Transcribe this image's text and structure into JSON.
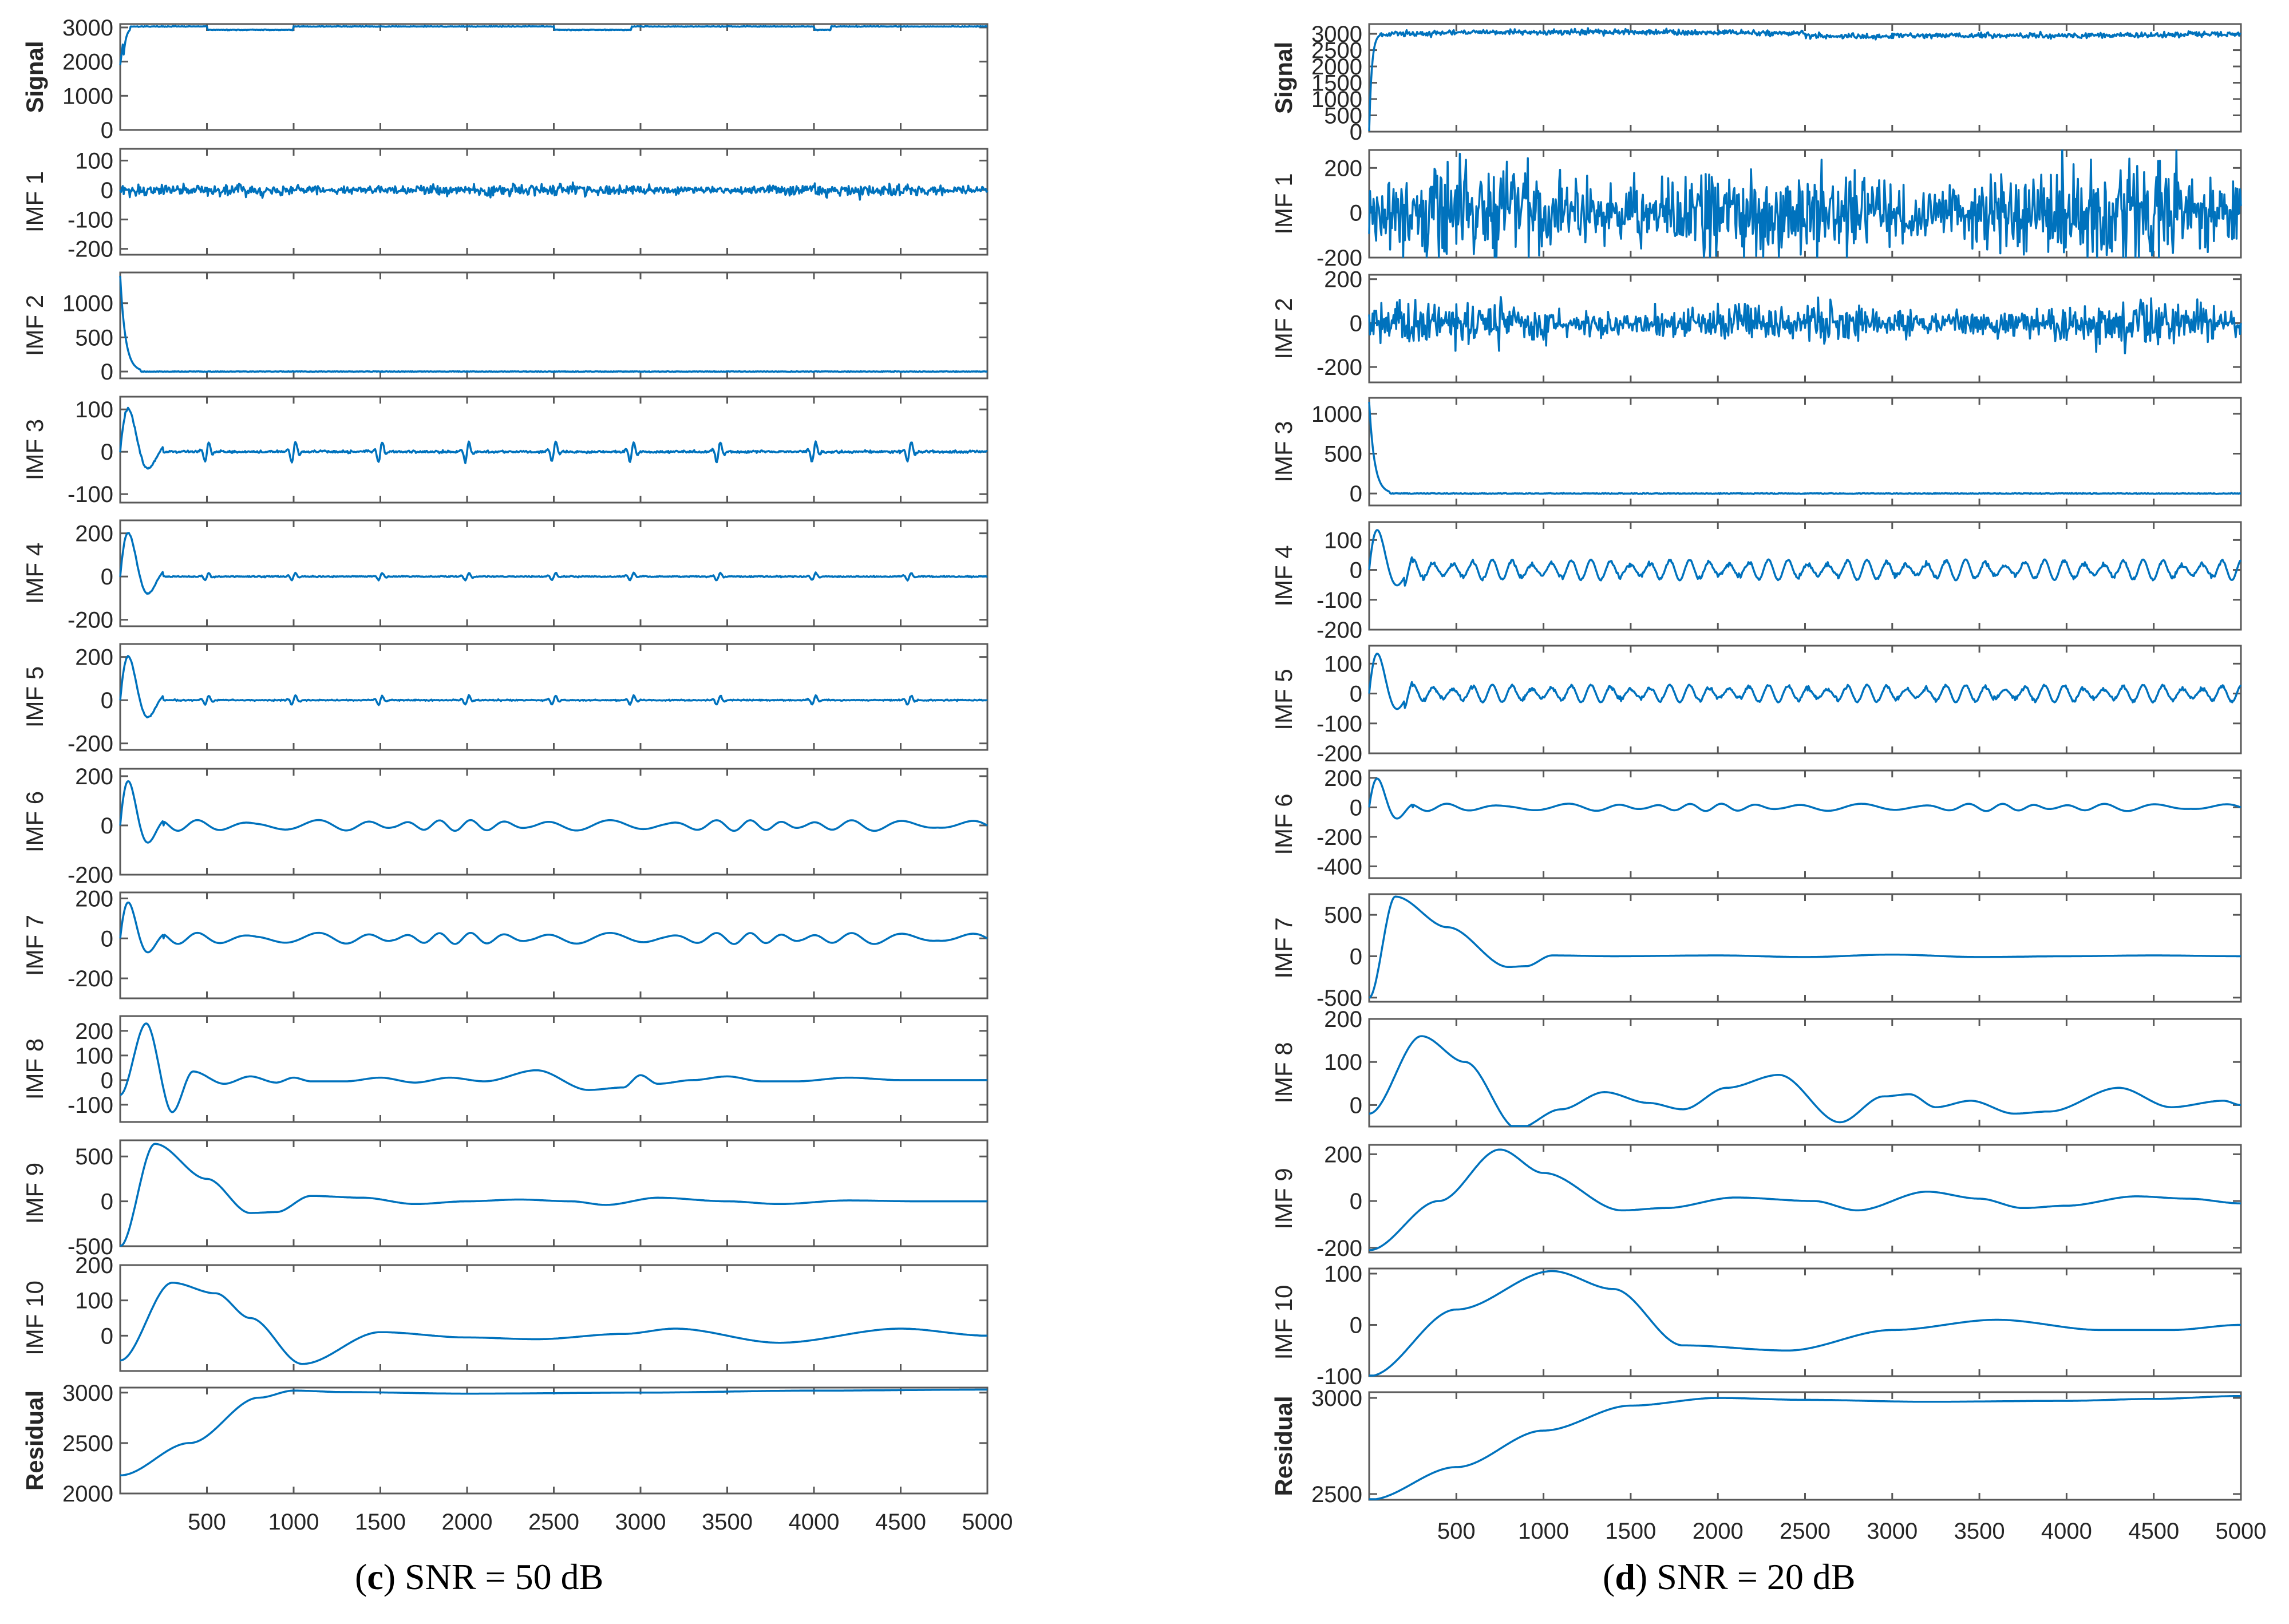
{
  "style": {
    "line_color": "#0072BD",
    "axis_color": "#595959",
    "text_color": "#262626"
  },
  "panels": [
    {
      "id": "c",
      "caption": {
        "open": "(",
        "letter": "c",
        "rest": ") SNR = 50 dB"
      },
      "x_ticks": [
        500,
        1000,
        1500,
        2000,
        2500,
        3000,
        3500,
        4000,
        4500,
        5000
      ],
      "chart_data": {
        "type": "line",
        "x_range": [
          0,
          5000
        ],
        "subplots": [
          {
            "ylabel": "Signal",
            "ylim": [
              0,
              3100
            ],
            "yticks": [
              0,
              1000,
              2000,
              3000
            ],
            "signal": "signal50"
          },
          {
            "ylabel": "IMF 1",
            "ylim": [
              -220,
              140
            ],
            "yticks": [
              -200,
              -100,
              0,
              100
            ],
            "signal": "noise",
            "amp": 12
          },
          {
            "ylabel": "IMF 2",
            "ylim": [
              -100,
              1450
            ],
            "yticks": [
              0,
              500,
              1000
            ],
            "signal": "spike",
            "peak": 1400
          },
          {
            "ylabel": "IMF 3",
            "ylim": [
              -120,
              130
            ],
            "yticks": [
              -100,
              0,
              100
            ],
            "signal": "bursts",
            "amp": 28
          },
          {
            "ylabel": "IMF 4",
            "ylim": [
              -230,
              260
            ],
            "yticks": [
              -200,
              0,
              200
            ],
            "signal": "bursts",
            "amp": 20
          },
          {
            "ylabel": "IMF 5",
            "ylim": [
              -230,
              260
            ],
            "yticks": [
              -200,
              0,
              200
            ],
            "signal": "bursts",
            "amp": 25
          },
          {
            "ylabel": "IMF 6",
            "ylim": [
              -200,
              230
            ],
            "yticks": [
              -200,
              0,
              200
            ],
            "signal": "waves",
            "amp": 22
          },
          {
            "ylabel": "IMF 7",
            "ylim": [
              -300,
              230
            ],
            "yticks": [
              -200,
              0,
              200
            ],
            "signal": "waves",
            "amp": 28
          },
          {
            "ylabel": "IMF 8",
            "ylim": [
              -170,
              260
            ],
            "yticks": [
              -100,
              0,
              100,
              200
            ],
            "signal": "imf8_c"
          },
          {
            "ylabel": "IMF 9",
            "ylim": [
              -500,
              680
            ],
            "yticks": [
              -500,
              0,
              500
            ],
            "signal": "imf9_c"
          },
          {
            "ylabel": "IMF 10",
            "ylim": [
              -100,
              200
            ],
            "yticks": [
              0,
              100,
              200
            ],
            "signal": "imf10_c"
          },
          {
            "ylabel": "Residual",
            "ylim": [
              2000,
              3050
            ],
            "yticks": [
              2000,
              2500,
              3000
            ],
            "signal": "res_c"
          }
        ]
      }
    },
    {
      "id": "d",
      "caption": {
        "open": "(",
        "letter": "d",
        "rest": ") SNR = 20 dB"
      },
      "x_ticks": [
        500,
        1000,
        1500,
        2000,
        2500,
        3000,
        3500,
        4000,
        4500,
        5000
      ],
      "chart_data": {
        "type": "line",
        "x_range": [
          0,
          5000
        ],
        "subplots": [
          {
            "ylabel": "Signal",
            "ylim": [
              0,
              3300
            ],
            "yticks": [
              0,
              500,
              1000,
              1500,
              2000,
              2500,
              3000
            ],
            "signal": "signal20"
          },
          {
            "ylabel": "IMF 1",
            "ylim": [
              -200,
              280
            ],
            "yticks": [
              -200,
              0,
              200
            ],
            "signal": "noise",
            "amp": 130
          },
          {
            "ylabel": "IMF 2",
            "ylim": [
              -270,
              220
            ],
            "yticks": [
              -200,
              0,
              200
            ],
            "signal": "noise",
            "amp": 55
          },
          {
            "ylabel": "IMF 3",
            "ylim": [
              -150,
              1200
            ],
            "yticks": [
              0,
              500,
              1000
            ],
            "signal": "spike",
            "peak": 1150
          },
          {
            "ylabel": "IMF 4",
            "ylim": [
              -200,
              160
            ],
            "yticks": [
              -200,
              -100,
              0,
              100
            ],
            "signal": "waves_busy",
            "amp": 35
          },
          {
            "ylabel": "IMF 5",
            "ylim": [
              -200,
              160
            ],
            "yticks": [
              -200,
              -100,
              0,
              100
            ],
            "signal": "waves_busy",
            "amp": 30
          },
          {
            "ylabel": "IMF 6",
            "ylim": [
              -480,
              250
            ],
            "yticks": [
              -400,
              -200,
              0,
              200
            ],
            "signal": "waves",
            "amp": 25
          },
          {
            "ylabel": "IMF 7",
            "ylim": [
              -550,
              750
            ],
            "yticks": [
              -500,
              0,
              500
            ],
            "signal": "imf7_d"
          },
          {
            "ylabel": "IMF 8",
            "ylim": [
              -50,
              200
            ],
            "yticks": [
              0,
              100,
              200
            ],
            "signal": "imf8_d"
          },
          {
            "ylabel": "IMF 9",
            "ylim": [
              -220,
              240
            ],
            "yticks": [
              -200,
              0,
              200
            ],
            "signal": "imf9_d"
          },
          {
            "ylabel": "IMF 10",
            "ylim": [
              -100,
              110
            ],
            "yticks": [
              -100,
              0,
              100
            ],
            "signal": "imf10_d"
          },
          {
            "ylabel": "Residual",
            "ylim": [
              2470,
              3030
            ],
            "yticks": [
              2500,
              3000
            ],
            "signal": "res_d"
          }
        ]
      }
    }
  ]
}
